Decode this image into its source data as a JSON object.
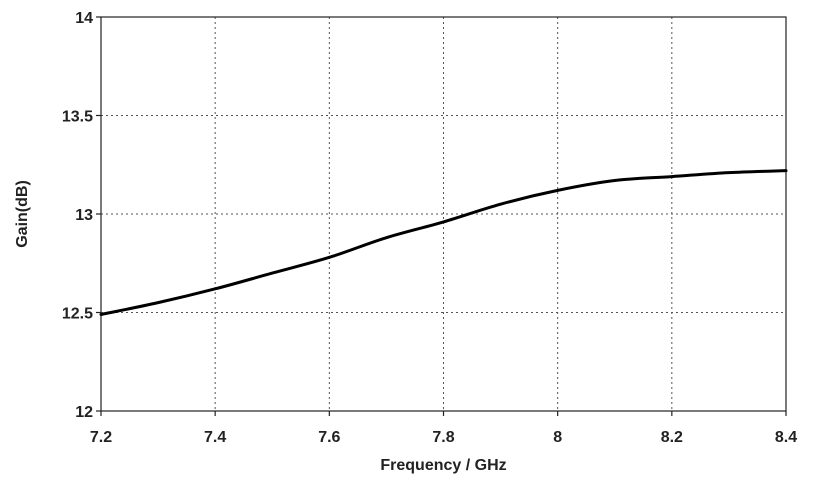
{
  "chart_data": {
    "type": "line",
    "title": "",
    "xlabel": "Frequency / GHz",
    "ylabel": "Gain(dB)",
    "xlim": [
      7.2,
      8.4
    ],
    "ylim": [
      12,
      14
    ],
    "grid": true,
    "x_ticks": [
      "7.2",
      "7.4",
      "7.6",
      "7.8",
      "8",
      "8.2",
      "8.4"
    ],
    "y_ticks": [
      "12",
      "12.5",
      "13",
      "13.5",
      "14"
    ],
    "series": [
      {
        "color": "#000000",
        "x": [
          7.2,
          7.3,
          7.4,
          7.5,
          7.6,
          7.7,
          7.8,
          7.9,
          8.0,
          8.1,
          8.2,
          8.3,
          8.4
        ],
        "y": [
          12.49,
          12.55,
          12.62,
          12.7,
          12.78,
          12.88,
          12.96,
          13.05,
          13.12,
          13.17,
          13.19,
          13.21,
          13.22
        ]
      }
    ]
  }
}
